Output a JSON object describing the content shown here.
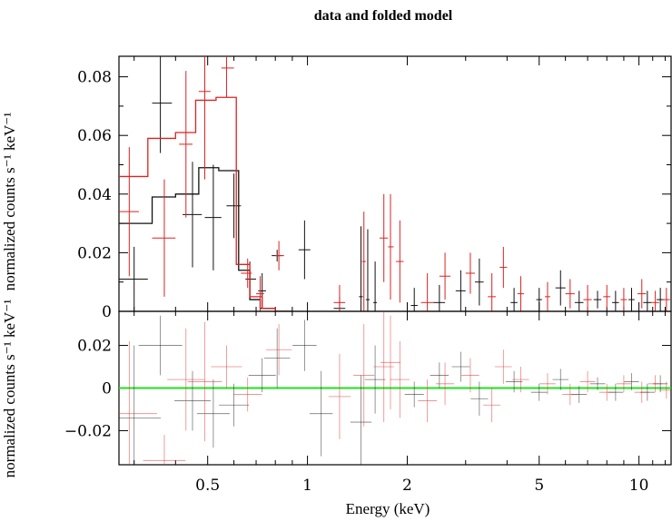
{
  "chart_data": {
    "type": "scatter",
    "title": "data and folded model",
    "xlabel": "Energy (keV)",
    "x_scale": "log",
    "xlim": [
      0.27,
      12.5
    ],
    "x_ticks": [
      0.5,
      1,
      2,
      5,
      10
    ],
    "x_tick_labels": [
      "0.5",
      "1",
      "2",
      "5",
      "10"
    ],
    "panels": [
      {
        "name": "spectrum",
        "ylabel": "normalized counts s⁻¹ keV⁻¹",
        "ylim": [
          0,
          0.087
        ],
        "y_ticks": [
          0,
          0.02,
          0.04,
          0.06,
          0.08
        ],
        "y_tick_labels": [
          "0",
          "0.02",
          "0.04",
          "0.06",
          "0.08"
        ]
      },
      {
        "name": "residuals",
        "ylabel": "normalized counts s⁻¹ keV⁻¹",
        "ylim": [
          -0.036,
          0.036
        ],
        "y_ticks": [
          -0.02,
          0,
          0.02
        ],
        "y_tick_labels": [
          "−0.02",
          "0",
          "0.02"
        ],
        "zero_line_color": "#22e022"
      }
    ],
    "colors": {
      "black_series": "#111111",
      "red_series": "#dd2222"
    },
    "series": [
      {
        "color": "black",
        "data": [
          {
            "x": 0.3,
            "xlo": 0.27,
            "xhi": 0.33,
            "y": 0.011,
            "yerr": 0.011
          },
          {
            "x": 0.36,
            "xlo": 0.34,
            "xhi": 0.39,
            "y": 0.071,
            "yerr": 0.017
          },
          {
            "x": 0.45,
            "xlo": 0.42,
            "xhi": 0.48,
            "y": 0.033,
            "yerr": 0.018
          },
          {
            "x": 0.52,
            "xlo": 0.49,
            "xhi": 0.55,
            "y": 0.032,
            "yerr": 0.018
          },
          {
            "x": 0.6,
            "xlo": 0.57,
            "xhi": 0.63,
            "y": 0.036,
            "yerr": 0.011
          },
          {
            "x": 0.67,
            "xlo": 0.65,
            "xhi": 0.7,
            "y": 0.011,
            "yerr": 0.006
          },
          {
            "x": 0.73,
            "xlo": 0.71,
            "xhi": 0.75,
            "y": 0.007,
            "yerr": 0.006
          },
          {
            "x": 0.81,
            "xlo": 0.78,
            "xhi": 0.84,
            "y": 0.019,
            "yerr": 0.002
          },
          {
            "x": 0.98,
            "xlo": 0.94,
            "xhi": 1.02,
            "y": 0.021,
            "yerr": 0.01
          },
          {
            "x": 1.25,
            "xlo": 1.2,
            "xhi": 1.3,
            "y": 0.001,
            "yerr": 0.004
          },
          {
            "x": 1.45,
            "xlo": 1.43,
            "xhi": 1.47,
            "y": 0.005,
            "yerr": 0.024
          },
          {
            "x": 1.52,
            "xlo": 1.5,
            "xhi": 1.54,
            "y": 0.004,
            "yerr": 0.024
          },
          {
            "x": 1.6,
            "xlo": 1.58,
            "xhi": 1.62,
            "y": 0.003,
            "yerr": 0.014
          },
          {
            "x": 2.1,
            "xlo": 2.05,
            "xhi": 2.15,
            "y": 0.002,
            "yerr": 0.006
          },
          {
            "x": 2.5,
            "xlo": 2.4,
            "xhi": 2.6,
            "y": 0.003,
            "yerr": 0.006
          },
          {
            "x": 2.9,
            "xlo": 2.8,
            "xhi": 3.0,
            "y": 0.007,
            "yerr": 0.007
          },
          {
            "x": 3.3,
            "xlo": 3.2,
            "xhi": 3.4,
            "y": 0.01,
            "yerr": 0.008
          },
          {
            "x": 4.2,
            "xlo": 4.1,
            "xhi": 4.3,
            "y": 0.003,
            "yerr": 0.005
          },
          {
            "x": 5.0,
            "xlo": 4.9,
            "xhi": 5.1,
            "y": 0.004,
            "yerr": 0.004
          },
          {
            "x": 5.8,
            "xlo": 5.6,
            "xhi": 6.0,
            "y": 0.008,
            "yerr": 0.006
          },
          {
            "x": 6.6,
            "xlo": 6.4,
            "xhi": 6.8,
            "y": 0.003,
            "yerr": 0.004
          },
          {
            "x": 7.5,
            "xlo": 7.3,
            "xhi": 7.7,
            "y": 0.004,
            "yerr": 0.003
          },
          {
            "x": 8.5,
            "xlo": 8.3,
            "xhi": 8.7,
            "y": 0.003,
            "yerr": 0.004
          },
          {
            "x": 9.5,
            "xlo": 9.3,
            "xhi": 9.7,
            "y": 0.004,
            "yerr": 0.004
          },
          {
            "x": 10.6,
            "xlo": 10.3,
            "xhi": 10.9,
            "y": 0.003,
            "yerr": 0.004
          },
          {
            "x": 11.6,
            "xlo": 11.3,
            "xhi": 11.9,
            "y": 0.004,
            "yerr": 0.004
          }
        ],
        "model_step": [
          {
            "x0": 0.27,
            "x1": 0.34,
            "y": 0.03
          },
          {
            "x0": 0.34,
            "x1": 0.4,
            "y": 0.039
          },
          {
            "x0": 0.4,
            "x1": 0.47,
            "y": 0.04
          },
          {
            "x0": 0.47,
            "x1": 0.54,
            "y": 0.049
          },
          {
            "x0": 0.54,
            "x1": 0.62,
            "y": 0.048
          },
          {
            "x0": 0.62,
            "x1": 0.67,
            "y": 0.014
          },
          {
            "x0": 0.67,
            "x1": 0.72,
            "y": 0.004
          },
          {
            "x0": 0.72,
            "x1": 0.8,
            "y": 0.001
          },
          {
            "x0": 0.8,
            "x1": 0.9,
            "y": 0.0
          }
        ],
        "residuals": [
          {
            "x": 0.3,
            "y": -0.014,
            "yerr": 0.034
          },
          {
            "x": 0.36,
            "y": 0.02,
            "yerr": 0.014
          },
          {
            "x": 0.45,
            "y": -0.006,
            "yerr": 0.014
          },
          {
            "x": 0.52,
            "y": -0.012,
            "yerr": 0.016
          },
          {
            "x": 0.6,
            "y": -0.008,
            "yerr": 0.01
          },
          {
            "x": 0.73,
            "y": 0.006,
            "yerr": 0.008
          },
          {
            "x": 0.81,
            "y": 0.014,
            "yerr": 0.014
          },
          {
            "x": 0.98,
            "y": 0.02,
            "yerr": 0.012
          },
          {
            "x": 1.1,
            "y": -0.012,
            "yerr": 0.02
          },
          {
            "x": 1.45,
            "y": -0.016,
            "yerr": 0.022
          },
          {
            "x": 1.6,
            "y": 0.004,
            "yerr": 0.016
          },
          {
            "x": 2.1,
            "y": -0.003,
            "yerr": 0.006
          },
          {
            "x": 2.5,
            "y": 0.006,
            "yerr": 0.006
          },
          {
            "x": 2.9,
            "y": 0.01,
            "yerr": 0.007
          },
          {
            "x": 3.3,
            "y": -0.005,
            "yerr": 0.008
          },
          {
            "x": 4.2,
            "y": 0.003,
            "yerr": 0.005
          },
          {
            "x": 5.0,
            "y": -0.002,
            "yerr": 0.004
          },
          {
            "x": 5.8,
            "y": 0.004,
            "yerr": 0.005
          },
          {
            "x": 6.6,
            "y": -0.003,
            "yerr": 0.004
          },
          {
            "x": 7.5,
            "y": 0.002,
            "yerr": 0.003
          },
          {
            "x": 8.5,
            "y": -0.002,
            "yerr": 0.004
          },
          {
            "x": 9.5,
            "y": 0.003,
            "yerr": 0.004
          },
          {
            "x": 10.6,
            "y": -0.002,
            "yerr": 0.004
          },
          {
            "x": 11.6,
            "y": 0.002,
            "yerr": 0.004
          }
        ]
      },
      {
        "color": "red",
        "data": [
          {
            "x": 0.29,
            "xlo": 0.27,
            "xhi": 0.31,
            "y": 0.034,
            "yerr": 0.022
          },
          {
            "x": 0.37,
            "xlo": 0.34,
            "xhi": 0.4,
            "y": 0.025,
            "yerr": 0.02
          },
          {
            "x": 0.43,
            "xlo": 0.41,
            "xhi": 0.45,
            "y": 0.057,
            "yerr": 0.025
          },
          {
            "x": 0.49,
            "xlo": 0.47,
            "xhi": 0.51,
            "y": 0.075,
            "yerr": 0.03
          },
          {
            "x": 0.57,
            "xlo": 0.55,
            "xhi": 0.6,
            "y": 0.083,
            "yerr": 0.01
          },
          {
            "x": 0.66,
            "xlo": 0.63,
            "xhi": 0.68,
            "y": 0.013,
            "yerr": 0.005
          },
          {
            "x": 0.72,
            "xlo": 0.7,
            "xhi": 0.74,
            "y": 0.006,
            "yerr": 0.006
          },
          {
            "x": 0.82,
            "xlo": 0.8,
            "xhi": 0.85,
            "y": 0.019,
            "yerr": 0.005
          },
          {
            "x": 1.25,
            "xlo": 1.2,
            "xhi": 1.3,
            "y": 0.003,
            "yerr": 0.006
          },
          {
            "x": 1.48,
            "xlo": 1.46,
            "xhi": 1.5,
            "y": 0.017,
            "yerr": 0.017
          },
          {
            "x": 1.7,
            "xlo": 1.65,
            "xhi": 1.75,
            "y": 0.025,
            "yerr": 0.015
          },
          {
            "x": 1.78,
            "xlo": 1.75,
            "xhi": 1.82,
            "y": 0.022,
            "yerr": 0.018
          },
          {
            "x": 1.9,
            "xlo": 1.85,
            "xhi": 1.95,
            "y": 0.017,
            "yerr": 0.014
          },
          {
            "x": 2.3,
            "xlo": 2.2,
            "xhi": 2.4,
            "y": 0.003,
            "yerr": 0.01
          },
          {
            "x": 2.6,
            "xlo": 2.5,
            "xhi": 2.7,
            "y": 0.012,
            "yerr": 0.008
          },
          {
            "x": 3.1,
            "xlo": 3.0,
            "xhi": 3.2,
            "y": 0.013,
            "yerr": 0.007
          },
          {
            "x": 3.6,
            "xlo": 3.5,
            "xhi": 3.7,
            "y": 0.005,
            "yerr": 0.008
          },
          {
            "x": 3.9,
            "xlo": 3.8,
            "xhi": 4.0,
            "y": 0.015,
            "yerr": 0.007
          },
          {
            "x": 4.4,
            "xlo": 4.3,
            "xhi": 4.5,
            "y": 0.006,
            "yerr": 0.006
          },
          {
            "x": 5.3,
            "xlo": 5.2,
            "xhi": 5.4,
            "y": 0.005,
            "yerr": 0.005
          },
          {
            "x": 6.2,
            "xlo": 6.0,
            "xhi": 6.4,
            "y": 0.006,
            "yerr": 0.005
          },
          {
            "x": 7.0,
            "xlo": 6.8,
            "xhi": 7.2,
            "y": 0.004,
            "yerr": 0.005
          },
          {
            "x": 8.0,
            "xlo": 7.8,
            "xhi": 8.2,
            "y": 0.005,
            "yerr": 0.004
          },
          {
            "x": 9.0,
            "xlo": 8.8,
            "xhi": 9.2,
            "y": 0.004,
            "yerr": 0.004
          },
          {
            "x": 10.2,
            "xlo": 9.9,
            "xhi": 10.5,
            "y": 0.006,
            "yerr": 0.005
          },
          {
            "x": 11.2,
            "xlo": 10.9,
            "xhi": 11.5,
            "y": 0.003,
            "yerr": 0.004
          },
          {
            "x": 12.1,
            "xlo": 11.8,
            "xhi": 12.4,
            "y": 0.004,
            "yerr": 0.004
          }
        ],
        "model_step": [
          {
            "x0": 0.27,
            "x1": 0.33,
            "y": 0.046
          },
          {
            "x0": 0.33,
            "x1": 0.4,
            "y": 0.059
          },
          {
            "x0": 0.4,
            "x1": 0.46,
            "y": 0.061
          },
          {
            "x0": 0.46,
            "x1": 0.53,
            "y": 0.072
          },
          {
            "x0": 0.53,
            "x1": 0.61,
            "y": 0.073
          },
          {
            "x0": 0.61,
            "x1": 0.67,
            "y": 0.016
          },
          {
            "x0": 0.67,
            "x1": 0.73,
            "y": 0.005
          },
          {
            "x0": 0.73,
            "x1": 0.8,
            "y": 0.001
          },
          {
            "x0": 0.8,
            "x1": 0.9,
            "y": 0.0
          }
        ],
        "residuals": [
          {
            "x": 0.29,
            "y": -0.012,
            "yerr": 0.034
          },
          {
            "x": 0.37,
            "y": -0.034,
            "yerr": 0.012
          },
          {
            "x": 0.43,
            "y": 0.004,
            "yerr": 0.024
          },
          {
            "x": 0.49,
            "y": 0.003,
            "yerr": 0.028
          },
          {
            "x": 0.57,
            "y": 0.01,
            "yerr": 0.01
          },
          {
            "x": 0.66,
            "y": -0.003,
            "yerr": 0.008
          },
          {
            "x": 0.82,
            "y": 0.018,
            "yerr": 0.012
          },
          {
            "x": 1.25,
            "y": -0.004,
            "yerr": 0.02
          },
          {
            "x": 1.48,
            "y": 0.006,
            "yerr": 0.024
          },
          {
            "x": 1.7,
            "y": 0.01,
            "yerr": 0.026
          },
          {
            "x": 1.78,
            "y": 0.012,
            "yerr": 0.022
          },
          {
            "x": 1.9,
            "y": 0.004,
            "yerr": 0.018
          },
          {
            "x": 2.3,
            "y": -0.006,
            "yerr": 0.01
          },
          {
            "x": 2.6,
            "y": 0.002,
            "yerr": 0.01
          },
          {
            "x": 3.1,
            "y": 0.006,
            "yerr": 0.008
          },
          {
            "x": 3.6,
            "y": -0.008,
            "yerr": 0.008
          },
          {
            "x": 3.9,
            "y": 0.01,
            "yerr": 0.008
          },
          {
            "x": 4.4,
            "y": 0.004,
            "yerr": 0.006
          },
          {
            "x": 5.3,
            "y": 0.002,
            "yerr": 0.005
          },
          {
            "x": 6.2,
            "y": -0.003,
            "yerr": 0.005
          },
          {
            "x": 7.0,
            "y": 0.003,
            "yerr": 0.005
          },
          {
            "x": 8.0,
            "y": -0.002,
            "yerr": 0.004
          },
          {
            "x": 9.0,
            "y": 0.002,
            "yerr": 0.004
          },
          {
            "x": 10.2,
            "y": -0.002,
            "yerr": 0.005
          },
          {
            "x": 11.2,
            "y": 0.002,
            "yerr": 0.004
          },
          {
            "x": 12.1,
            "y": -0.001,
            "yerr": 0.004
          }
        ]
      }
    ]
  }
}
